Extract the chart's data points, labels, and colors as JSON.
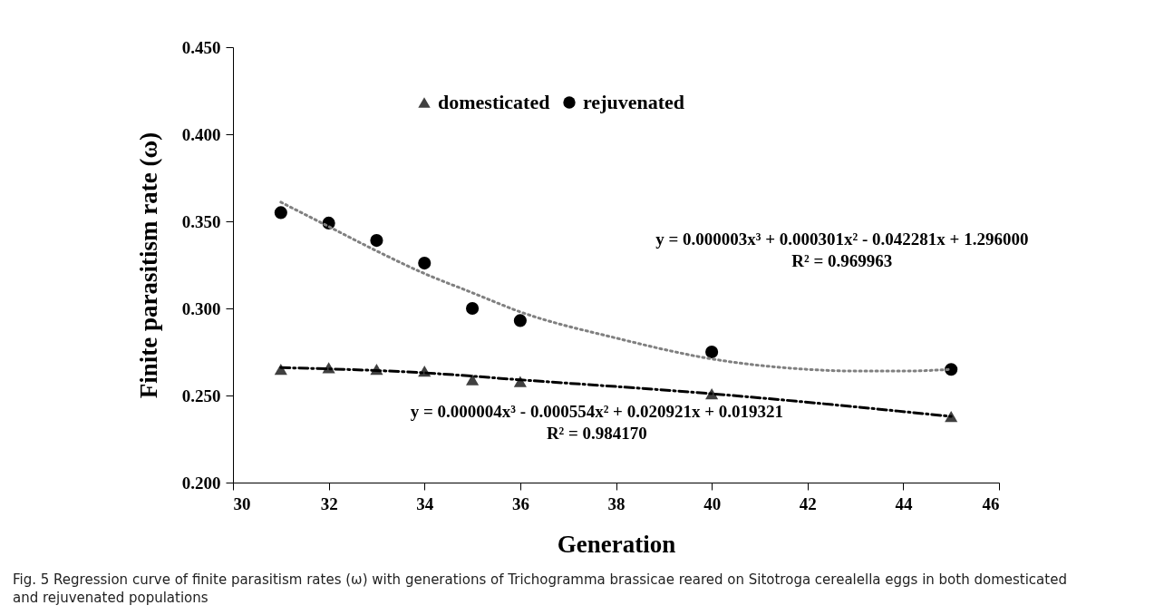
{
  "chart_data": {
    "type": "scatter",
    "xlabel": "Generation",
    "ylabel": "Finite parasitism rate (ω)",
    "x": [
      31,
      32,
      33,
      34,
      35,
      36,
      40,
      45
    ],
    "series": [
      {
        "name": "domesticated",
        "color": "#404040",
        "marker": "triangle",
        "values": [
          0.265,
          0.266,
          0.265,
          0.264,
          0.259,
          0.258,
          0.251,
          0.238
        ]
      },
      {
        "name": "rejuvenated",
        "color": "#000000",
        "marker": "circle",
        "values": [
          0.355,
          0.349,
          0.339,
          0.326,
          0.3,
          0.293,
          0.275,
          0.265
        ]
      },
      {
        "type": "line",
        "color": "#000000",
        "line_style": "dashed",
        "marker": "none",
        "x": [
          31,
          34,
          36,
          40,
          45
        ],
        "values": [
          0.266,
          0.263,
          0.259,
          0.251,
          0.238
        ]
      },
      {
        "type": "line",
        "color": "#808080",
        "line_style": "dotted",
        "marker": "none",
        "x": [
          31,
          32,
          33,
          34,
          35,
          36,
          38,
          40,
          42,
          43,
          44,
          45
        ],
        "values": [
          0.361,
          0.347,
          0.333,
          0.32,
          0.309,
          0.298,
          0.283,
          0.271,
          0.265,
          0.264,
          0.264,
          0.265
        ]
      }
    ],
    "xlim": [
      30,
      46
    ],
    "xticks": [
      30,
      32,
      34,
      36,
      38,
      40,
      42,
      44,
      46
    ],
    "ylim": [
      0.2,
      0.45
    ],
    "yticks": [
      {
        "value": 0.2,
        "label": "0.200"
      },
      {
        "value": 0.25,
        "label": "0.250"
      },
      {
        "value": 0.3,
        "label": "0.300"
      },
      {
        "value": 0.35,
        "label": "0.350"
      },
      {
        "value": 0.4,
        "label": "0.400"
      },
      {
        "value": 0.45,
        "label": "0.450"
      }
    ],
    "grid": false,
    "legend": "top",
    "annotations": [
      "y = 0.000003x³ + 0.000301x² - 0.042281x + 1.296000",
      "R² = 0.969963",
      "y = 0.000004x³ - 0.000554x² + 0.020921x + 0.019321",
      "R² = 0.984170",
      "Fig. 5  Regression curve of finite parasitism rates (ω) with generations of Trichogramma brassicae reared on Sitotroga cerealella eggs in both domesticated and rejuvenated populations"
    ]
  }
}
